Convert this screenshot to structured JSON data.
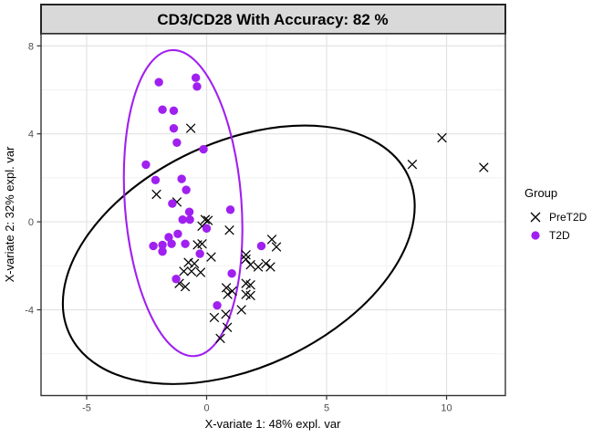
{
  "title": "CD3/CD28 With Accuracy: 82 %",
  "colors": {
    "t2d_purple": "#A020F0",
    "pret2d_black": "#000000",
    "strip_bg": "#D9D9D9",
    "strip_border": "#262626",
    "panel_border": "#333333",
    "grid_major": "#E3E3E3",
    "grid_minor": "#F1F1F1",
    "axis_text": "#4D4D4D"
  },
  "legend": {
    "title": "Group",
    "items": [
      {
        "label": "PreT2D",
        "marker": "x",
        "color": "#000000"
      },
      {
        "label": "T2D",
        "marker": "circle",
        "color": "#A020F0"
      }
    ]
  },
  "chart_data": {
    "type": "scatter",
    "title": "CD3/CD28 With Accuracy: 82 %",
    "xlabel": "X-variate 1: 48% expl. var",
    "ylabel": "X-variate 2: 32% expl. var",
    "xlim": [
      -6.9,
      12.45
    ],
    "ylim": [
      -7.9,
      8.55
    ],
    "x_ticks": [
      -5,
      0,
      5,
      10
    ],
    "y_ticks": [
      8,
      4,
      0,
      -4
    ],
    "x_minor_ticks": [
      -2.5,
      2.5,
      7.5
    ],
    "y_minor_ticks": [
      6,
      2,
      -2,
      -6
    ],
    "grid": true,
    "legend_position": "right",
    "series": [
      {
        "name": "PreT2D",
        "marker": "x",
        "color": "#000000",
        "points": [
          [
            -0.66,
            4.25
          ],
          [
            -2.09,
            1.25
          ],
          [
            -1.24,
            0.9
          ],
          [
            -0.06,
            0.1
          ],
          [
            0.06,
            0.06
          ],
          [
            -0.19,
            -0.2
          ],
          [
            0.95,
            -0.38
          ],
          [
            -0.38,
            -1.05
          ],
          [
            -0.19,
            -1.0
          ],
          [
            0.19,
            -1.6
          ],
          [
            1.64,
            -1.5
          ],
          [
            1.64,
            -1.7
          ],
          [
            2.72,
            -0.8
          ],
          [
            2.91,
            -1.14
          ],
          [
            -0.76,
            -1.85
          ],
          [
            -0.51,
            -1.9
          ],
          [
            -0.95,
            -2.25
          ],
          [
            -0.63,
            -2.25
          ],
          [
            -0.25,
            -2.3
          ],
          [
            -1.14,
            -2.8
          ],
          [
            -0.89,
            -2.95
          ],
          [
            1.83,
            -1.95
          ],
          [
            2.15,
            -2.05
          ],
          [
            2.47,
            -1.9
          ],
          [
            2.66,
            -2.05
          ],
          [
            1.64,
            -2.8
          ],
          [
            1.83,
            -2.87
          ],
          [
            0.82,
            -3.0
          ],
          [
            1.07,
            -3.15
          ],
          [
            0.88,
            -3.3
          ],
          [
            1.64,
            -3.3
          ],
          [
            1.83,
            -3.35
          ],
          [
            1.45,
            -4.0
          ],
          [
            0.8,
            -4.2
          ],
          [
            0.32,
            -4.35
          ],
          [
            0.86,
            -4.8
          ],
          [
            0.57,
            -5.3
          ],
          [
            9.81,
            3.82
          ],
          [
            8.57,
            2.61
          ],
          [
            11.55,
            2.47
          ]
        ]
      },
      {
        "name": "T2D",
        "marker": "circle",
        "color": "#A020F0",
        "points": [
          [
            -1.99,
            6.35
          ],
          [
            -0.45,
            6.55
          ],
          [
            -0.4,
            6.15
          ],
          [
            -1.84,
            5.1
          ],
          [
            -1.37,
            5.05
          ],
          [
            -1.37,
            4.25
          ],
          [
            -1.24,
            3.6
          ],
          [
            -0.13,
            3.3
          ],
          [
            -2.53,
            2.6
          ],
          [
            -2.13,
            1.9
          ],
          [
            -1.04,
            1.95
          ],
          [
            -0.85,
            1.45
          ],
          [
            -1.43,
            0.83
          ],
          [
            -0.72,
            0.45
          ],
          [
            -1.0,
            0.1
          ],
          [
            -0.7,
            0.1
          ],
          [
            0.0,
            -0.3
          ],
          [
            0.99,
            0.55
          ],
          [
            -1.58,
            -0.7
          ],
          [
            -1.2,
            -0.55
          ],
          [
            -2.22,
            -1.1
          ],
          [
            -1.84,
            -1.05
          ],
          [
            -1.46,
            -1.0
          ],
          [
            -0.89,
            -1.0
          ],
          [
            -1.84,
            -1.35
          ],
          [
            -0.28,
            -1.45
          ],
          [
            2.28,
            -1.1
          ],
          [
            -1.27,
            -2.6
          ],
          [
            1.05,
            -2.35
          ],
          [
            0.44,
            -3.8
          ]
        ]
      }
    ],
    "ellipses": [
      {
        "group": "PreT2D",
        "color": "#000000",
        "center": [
          1.34,
          -1.5
        ],
        "semi_major": 7.92,
        "semi_minor": 5.03,
        "angle_deg": 27
      },
      {
        "group": "T2D",
        "color": "#A020F0",
        "center": [
          -0.98,
          0.85
        ],
        "semi_major": 6.97,
        "semi_minor": 2.43,
        "angle_deg": 94
      }
    ]
  }
}
